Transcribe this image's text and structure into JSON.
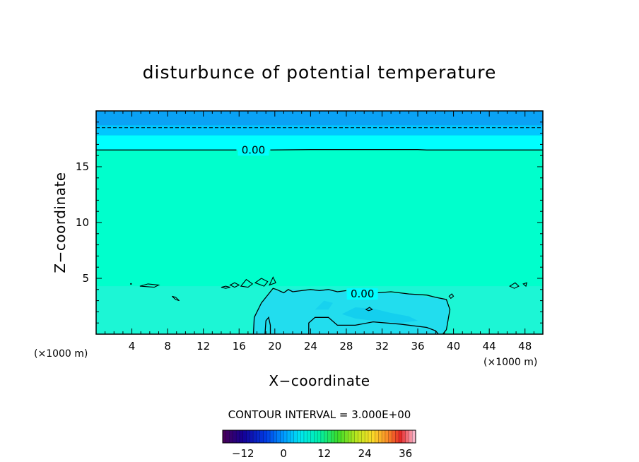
{
  "chart_data": {
    "type": "contour",
    "title": "disturbunce of potential temperature",
    "xlabel": "X−coordinate",
    "ylabel": "Z−coordinate",
    "x_unit_label_left": "(×1000 m)",
    "x_unit_label_right": "(×1000 m)",
    "xlim": [
      0,
      50
    ],
    "ylim": [
      0,
      20
    ],
    "x_ticks": [
      4,
      8,
      12,
      16,
      20,
      24,
      28,
      32,
      36,
      40,
      44,
      48
    ],
    "x_tick_labels": [
      "4",
      "8",
      "12",
      "16",
      "20",
      "24",
      "28",
      "32",
      "36",
      "40",
      "44",
      "48"
    ],
    "y_ticks": [
      5,
      10,
      15
    ],
    "y_tick_labels": [
      "5",
      "10",
      "15"
    ],
    "contour_interval_text": "CONTOUR INTERVAL = 3.000E+00",
    "contour_labels": [
      "0.00",
      "0.00"
    ],
    "zero_contour_height_upper": 16.5,
    "dashed_contour_height": 18.5,
    "zero_contour_region_lower_x": [
      17.5,
      39.5
    ],
    "zero_contour_region_lower_top": 4,
    "colorbar": {
      "min": -18,
      "max": 39,
      "tick_values": [
        -12,
        0,
        12,
        24,
        36
      ],
      "tick_labels": [
        "−12",
        "0",
        "12",
        "24",
        "36"
      ]
    },
    "colors": {
      "band_top": "#0aa2f5",
      "band_mid": "#00c8ff",
      "band_cyan": "#00ffff",
      "background_field": "#00ffcc",
      "lower_field": "#33eedd",
      "anomaly_light": "#22ddee",
      "anomaly_mid": "#11ccee"
    }
  }
}
